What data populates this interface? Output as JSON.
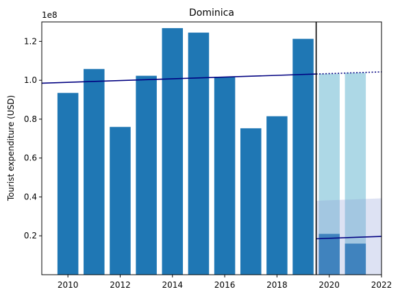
{
  "chart_data": {
    "type": "bar",
    "title": "Dominica",
    "ylabel": "Tourist expenditure (USD)",
    "xlabel": "",
    "y_offset_label": "1e8",
    "xlim": [
      2009,
      2022
    ],
    "ylim": [
      0,
      130000000
    ],
    "xticks": [
      2010,
      2012,
      2014,
      2016,
      2018,
      2020,
      2022
    ],
    "yticks": [
      {
        "value": 20000000,
        "label": "0.2"
      },
      {
        "value": 40000000,
        "label": "0.4"
      },
      {
        "value": 60000000,
        "label": "0.6"
      },
      {
        "value": 80000000,
        "label": "0.8"
      },
      {
        "value": 100000000,
        "label": "1.0"
      },
      {
        "value": 120000000,
        "label": "1.2"
      }
    ],
    "grid": false,
    "bar_color": "#1f77b4",
    "actual": {
      "x": [
        2010,
        2011,
        2012,
        2013,
        2014,
        2015,
        2016,
        2017,
        2018,
        2019,
        2020,
        2021
      ],
      "values": [
        93500000,
        105800000,
        76000000,
        102300000,
        126800000,
        124500000,
        101800000,
        75300000,
        81500000,
        121300000,
        21000000,
        16000000
      ]
    },
    "projected": {
      "color": "#add8e6",
      "x": [
        2020,
        2021
      ],
      "values": [
        103300000,
        103800000
      ]
    },
    "pre_trend": {
      "color": "#000080",
      "x": [
        2009,
        2019.5
      ],
      "y": [
        98500000,
        103200000
      ]
    },
    "pre_trend_extension": {
      "color": "#000080",
      "style": "dotted",
      "x": [
        2019.5,
        2022
      ],
      "y": [
        103200000,
        104300000
      ]
    },
    "post_trend": {
      "color": "#000080",
      "x": [
        2019.5,
        2022
      ],
      "y": [
        18500000,
        19700000
      ]
    },
    "post_band": {
      "color": "#8f9fd6",
      "x": [
        2019.5,
        2022
      ],
      "upper": [
        38000000,
        39300000
      ]
    },
    "break_x": 2019.5
  }
}
